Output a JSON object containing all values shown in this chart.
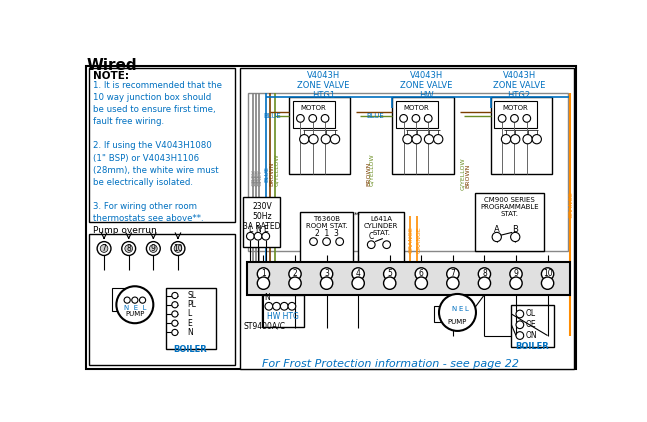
{
  "title": "Wired",
  "title_color": "#000000",
  "title_fontsize": 11,
  "bg_color": "#ffffff",
  "note_title": "NOTE:",
  "note_color": "#0070C0",
  "note_lines": [
    "1. It is recommended that the",
    "10 way junction box should",
    "be used to ensure first time,",
    "fault free wiring.",
    "",
    "2. If using the V4043H1080",
    "(1\" BSP) or V4043H1106",
    "(28mm), the white wire must",
    "be electrically isolated.",
    "",
    "3. For wiring other room",
    "thermostats see above**."
  ],
  "pump_overrun_label": "Pump overrun",
  "zone_valve_labels": [
    "V4043H\nZONE VALVE\nHTG1",
    "V4043H\nZONE VALVE\nHW",
    "V4043H\nZONE VALVE\nHTG2"
  ],
  "bottom_label": "For Frost Protection information - see page 22",
  "bottom_label_color": "#0070C0",
  "wc_grey": "#808080",
  "wc_blue": "#0070C0",
  "wc_brown": "#7B3F00",
  "wc_gyellow": "#6B8E23",
  "wc_orange": "#FF8C00",
  "wc_black": "#000000",
  "motor_label": "MOTOR",
  "pump_label": "PUMP",
  "power_label": "230V\n50Hz\n3A RATED",
  "thermostat1_label": "T6360B\nROOM STAT.",
  "thermostat2_label": "L641A\nCYLINDER\nSTAT.",
  "programmer_label": "CM900 SERIES\nPROGRAMMABLE\nSTAT.",
  "st9400_label": "ST9400A/C",
  "hwhtg_label": "HW HTG",
  "boiler_label": "BOILER"
}
